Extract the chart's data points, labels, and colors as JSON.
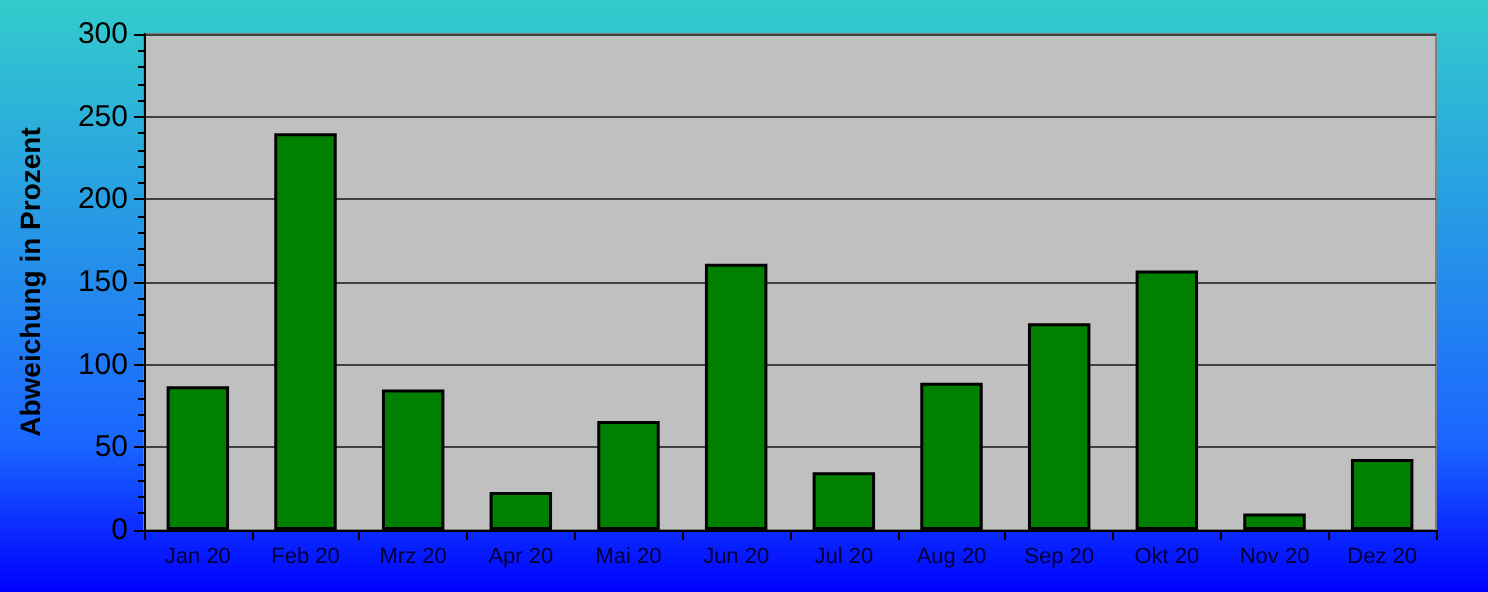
{
  "chart_data": {
    "type": "bar",
    "ylabel": "Abweichung in Prozent",
    "categories": [
      "Jan 20",
      "Feb 20",
      "Mrz 20",
      "Apr 20",
      "Mai 20",
      "Jun 20",
      "Jul 20",
      "Aug 20",
      "Sep 20",
      "Okt 20",
      "Nov 20",
      "Dez 20"
    ],
    "values": [
      87,
      240,
      85,
      23,
      66,
      161,
      35,
      89,
      125,
      157,
      10,
      43
    ],
    "color": "#008000",
    "ylim": [
      0,
      300
    ],
    "yticks": [
      0,
      50,
      100,
      150,
      200,
      250,
      300
    ],
    "grid": "y"
  }
}
